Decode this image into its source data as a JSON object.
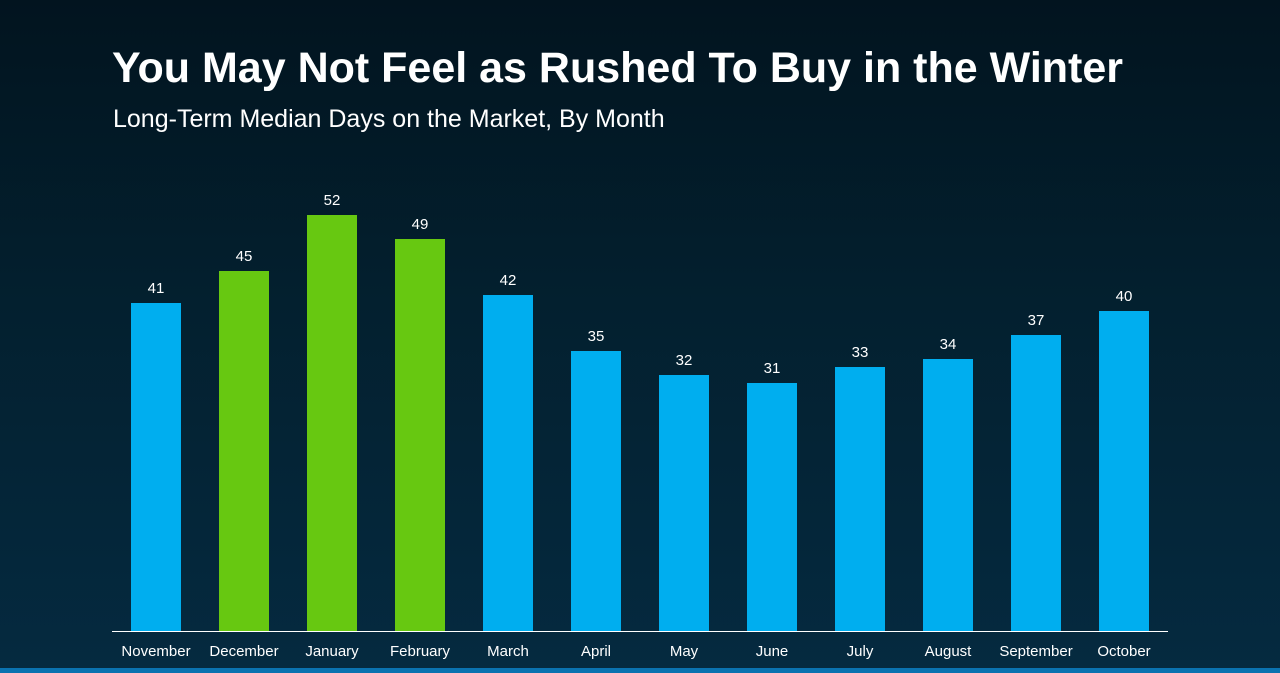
{
  "page": {
    "title": "You May Not Feel as Rushed To Buy in the Winter",
    "subtitle": "Long-Term Median Days on the Market, By Month"
  },
  "colors": {
    "background": "#03202f",
    "bar_default": "#00aeef",
    "bar_highlight": "#67c811",
    "axis": "#ffffff",
    "text": "#ffffff"
  },
  "chart_data": {
    "type": "bar",
    "title": "You May Not Feel as Rushed To Buy in the Winter",
    "subtitle": "Long-Term Median Days on the Market, By Month",
    "xlabel": "",
    "ylabel": "",
    "categories": [
      "November",
      "December",
      "January",
      "February",
      "March",
      "April",
      "May",
      "June",
      "July",
      "August",
      "September",
      "October"
    ],
    "values": [
      41,
      45,
      52,
      49,
      42,
      35,
      32,
      31,
      33,
      34,
      37,
      40
    ],
    "highlighted": [
      "December",
      "January",
      "February"
    ],
    "ylim": [
      0,
      54
    ],
    "grid": false,
    "legend": "none",
    "data_labels": true
  }
}
